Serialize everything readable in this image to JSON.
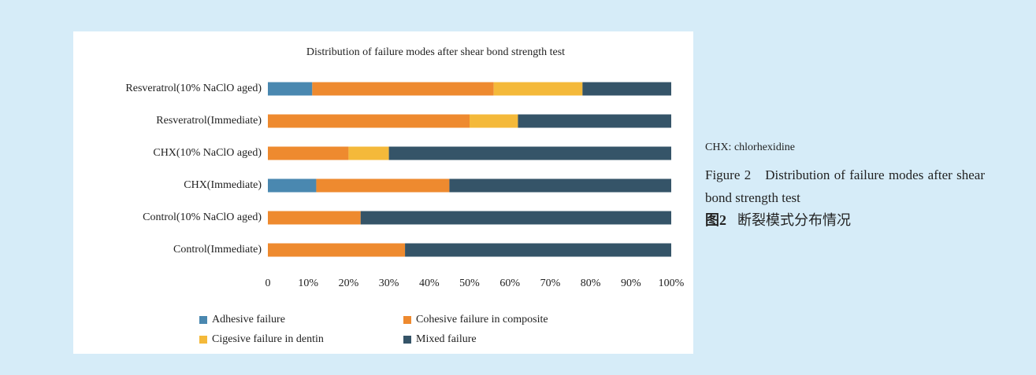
{
  "chart_data": {
    "type": "stacked-bar-horizontal",
    "title": "Distribution of failure modes after shear bond strength test",
    "categories": [
      "Resveratrol(10% NaClO aged)",
      "Resveratrol(Immediate)",
      "CHX(10% NaClO aged)",
      "CHX(Immediate)",
      "Control(10% NaClO aged)",
      "Control(Immediate)"
    ],
    "series": [
      {
        "name": "Adhesive failure",
        "color": "#4a88b0",
        "values": [
          11,
          0,
          0,
          12,
          0,
          0
        ]
      },
      {
        "name": "Cohesive failure in composite",
        "color": "#ee8a2f",
        "values": [
          45,
          50,
          20,
          33,
          23,
          34
        ]
      },
      {
        "name": "Cigesive failure in dentin",
        "color": "#f4b93a",
        "values": [
          22,
          12,
          10,
          0,
          0,
          0
        ]
      },
      {
        "name": "Mixed failure",
        "color": "#355468",
        "values": [
          22,
          38,
          70,
          55,
          77,
          66
        ]
      }
    ],
    "xlim": [
      0,
      100
    ],
    "xticks": [
      0,
      {
        "value": 10,
        "label": "10%"
      },
      {
        "value": 20,
        "label": "20%"
      },
      {
        "value": 30,
        "label": "30%"
      },
      {
        "value": 40,
        "label": "40%"
      },
      {
        "value": 50,
        "label": "50%"
      },
      {
        "value": 60,
        "label": "60%"
      },
      {
        "value": 70,
        "label": "70%"
      },
      {
        "value": 80,
        "label": "80%"
      },
      {
        "value": 90,
        "label": "90%"
      },
      {
        "value": 100,
        "label": "100%"
      }
    ],
    "grid": false
  },
  "caption": {
    "note": "CHX: chlorhexidine",
    "figure_en_label": "Figure 2",
    "figure_en": "Distribution of failure modes after shear bond strength test",
    "figure_cn_label": "图2",
    "figure_cn": "断裂模式分布情况"
  }
}
